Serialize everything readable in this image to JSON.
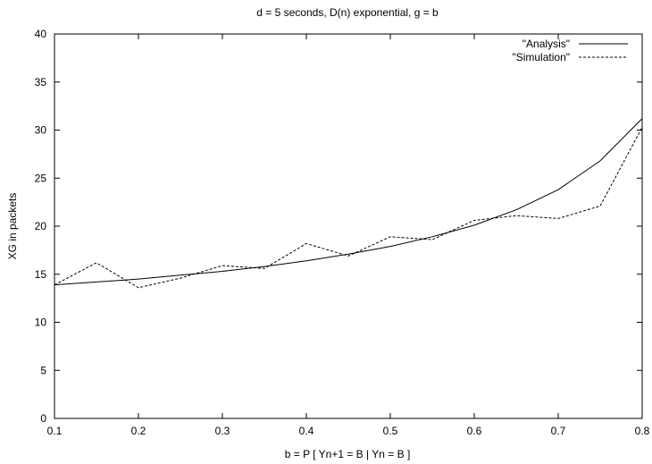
{
  "chart_data": {
    "type": "line",
    "title": "d = 5 seconds, D(n) exponential, g = b",
    "xlabel": "b = P [ Yn+1 = B | Yn = B ]",
    "ylabel": "XG in packets",
    "xlim": [
      0.1,
      0.8
    ],
    "ylim": [
      0,
      40
    ],
    "xticks": [
      0.1,
      0.2,
      0.3,
      0.4,
      0.5,
      0.6,
      0.7,
      0.8
    ],
    "xtick_labels": [
      "0.1",
      "0.2",
      "0.3",
      "0.4",
      "0.5",
      "0.6",
      "0.7",
      "0.8"
    ],
    "yticks": [
      0,
      5,
      10,
      15,
      20,
      25,
      30,
      35,
      40
    ],
    "ytick_labels": [
      "0",
      "5",
      "10",
      "15",
      "20",
      "25",
      "30",
      "35",
      "40"
    ],
    "grid": false,
    "legend_position": "top-right",
    "series": [
      {
        "name": "\"Analysis\"",
        "style": "solid",
        "color": "#000000",
        "x": [
          0.1,
          0.15,
          0.2,
          0.25,
          0.3,
          0.35,
          0.4,
          0.45,
          0.5,
          0.55,
          0.6,
          0.65,
          0.7,
          0.75,
          0.8
        ],
        "y": [
          13.9,
          14.2,
          14.5,
          14.9,
          15.3,
          15.8,
          16.4,
          17.1,
          17.9,
          18.9,
          20.1,
          21.7,
          23.8,
          26.8,
          31.2
        ]
      },
      {
        "name": "\"Simulation\"",
        "style": "dashed",
        "color": "#000000",
        "x": [
          0.1,
          0.15,
          0.2,
          0.25,
          0.3,
          0.35,
          0.4,
          0.45,
          0.5,
          0.55,
          0.6,
          0.65,
          0.7,
          0.75,
          0.8
        ],
        "y": [
          13.9,
          16.2,
          13.6,
          14.6,
          15.9,
          15.6,
          18.2,
          16.9,
          18.9,
          18.6,
          20.6,
          21.1,
          20.8,
          22.1,
          30.3
        ]
      }
    ]
  }
}
